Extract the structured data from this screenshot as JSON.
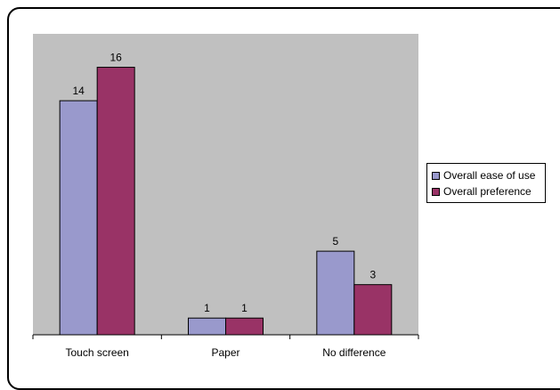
{
  "chart_data": {
    "type": "bar",
    "categories": [
      "Touch screen",
      "Paper",
      "No difference"
    ],
    "series": [
      {
        "name": "Overall ease of use",
        "values": [
          14,
          1,
          5
        ],
        "color": "#9999cc"
      },
      {
        "name": "Overall preference",
        "values": [
          16,
          1,
          3
        ],
        "color": "#993366"
      }
    ],
    "title": "",
    "xlabel": "",
    "ylabel": "",
    "ylim": [
      0,
      18
    ],
    "grid": false,
    "plot_background": "#c0c0c0",
    "legend_position": "right"
  }
}
